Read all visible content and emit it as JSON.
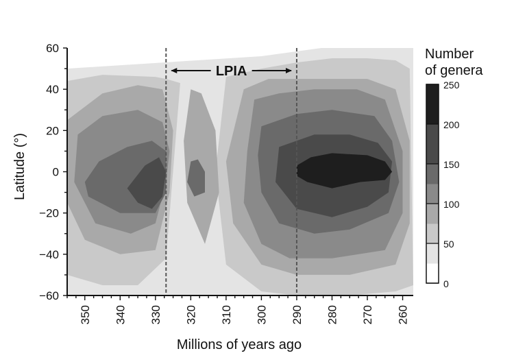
{
  "chart_data": {
    "type": "heatmap",
    "title": "",
    "xlabel": "Millions of years ago",
    "ylabel": "Latitude (°)",
    "xlim": [
      355,
      257
    ],
    "ylim": [
      -60,
      60
    ],
    "x_ticks": [
      350,
      340,
      330,
      320,
      310,
      300,
      290,
      280,
      270,
      260
    ],
    "x_tick_labels": [
      "350",
      "340",
      "330",
      "320",
      "310",
      "300",
      "290",
      "280",
      "270",
      "260"
    ],
    "y_ticks": [
      60,
      40,
      20,
      0,
      -20,
      -40,
      -60
    ],
    "y_tick_labels": [
      "60",
      "40",
      "20",
      "0",
      "−20",
      "−40",
      "−60"
    ],
    "colorbar": {
      "title_lines": [
        "Number",
        "of genera"
      ],
      "levels": [
        0,
        50,
        100,
        150,
        200,
        250
      ],
      "level_labels": [
        "0",
        "50",
        "100",
        "150",
        "200",
        "250"
      ],
      "colors": [
        "#ffffff",
        "#e4e4e4",
        "#c9c9c9",
        "#a9a9a9",
        "#8a8a8a",
        "#6a6a6a",
        "#4a4a4a",
        "#1e1e1e"
      ]
    },
    "annotation": {
      "label": "LPIA",
      "x_start": 327,
      "x_end": 290,
      "line_style": "dashed"
    },
    "contours": [
      {
        "level": 1,
        "polygons": [
          [
            [
              355,
              50
            ],
            [
              300,
              56
            ],
            [
              283,
              60
            ],
            [
              263,
              60
            ],
            [
              257,
              60
            ],
            [
              257,
              -60
            ],
            [
              355,
              -60
            ]
          ]
        ]
      },
      {
        "level": 2,
        "polygons": [
          [
            [
              355,
              44
            ],
            [
              345,
              47
            ],
            [
              330,
              46
            ],
            [
              327,
              45
            ],
            [
              323,
              43
            ],
            [
              327,
              -42
            ],
            [
              335,
              -55
            ],
            [
              345,
              -55
            ],
            [
              355,
              -50
            ]
          ],
          [
            [
              310,
              46
            ],
            [
              300,
              50
            ],
            [
              290,
              53
            ],
            [
              280,
              55
            ],
            [
              270,
              55
            ],
            [
              262,
              54
            ],
            [
              258,
              50
            ],
            [
              257,
              -55
            ],
            [
              262,
              -58
            ],
            [
              275,
              -60
            ],
            [
              290,
              -60
            ],
            [
              300,
              -58
            ],
            [
              310,
              -45
            ],
            [
              313,
              0
            ]
          ]
        ]
      },
      {
        "level": 3,
        "polygons": [
          [
            [
              355,
              25
            ],
            [
              345,
              38
            ],
            [
              335,
              42
            ],
            [
              328,
              40
            ],
            [
              325,
              20
            ],
            [
              326,
              -10
            ],
            [
              330,
              -38
            ],
            [
              340,
              -40
            ],
            [
              350,
              -33
            ],
            [
              355,
              -15
            ]
          ],
          [
            [
              320,
              40
            ],
            [
              322,
              15
            ],
            [
              321,
              -15
            ],
            [
              316,
              -35
            ],
            [
              312,
              -10
            ],
            [
              313,
              20
            ],
            [
              317,
              38
            ]
          ],
          [
            [
              305,
              40
            ],
            [
              298,
              45
            ],
            [
              290,
              45
            ],
            [
              280,
              45
            ],
            [
              270,
              45
            ],
            [
              262,
              40
            ],
            [
              258,
              15
            ],
            [
              258,
              -25
            ],
            [
              262,
              -45
            ],
            [
              275,
              -50
            ],
            [
              290,
              -50
            ],
            [
              300,
              -45
            ],
            [
              308,
              -25
            ],
            [
              310,
              5
            ]
          ]
        ]
      },
      {
        "level": 4,
        "polygons": [
          [
            [
              352,
              18
            ],
            [
              345,
              27
            ],
            [
              335,
              30
            ],
            [
              328,
              24
            ],
            [
              326,
              10
            ],
            [
              327,
              -5
            ],
            [
              330,
              -25
            ],
            [
              337,
              -30
            ],
            [
              347,
              -25
            ],
            [
              353,
              -5
            ]
          ],
          [
            [
              302,
              35
            ],
            [
              295,
              38
            ],
            [
              285,
              40
            ],
            [
              273,
              40
            ],
            [
              265,
              35
            ],
            [
              260,
              10
            ],
            [
              260,
              -20
            ],
            [
              265,
              -38
            ],
            [
              280,
              -42
            ],
            [
              292,
              -42
            ],
            [
              300,
              -35
            ],
            [
              305,
              -15
            ],
            [
              304,
              10
            ]
          ]
        ]
      },
      {
        "level": 5,
        "polygons": [
          [
            [
              346,
              5
            ],
            [
              338,
              12
            ],
            [
              331,
              15
            ],
            [
              327,
              10
            ],
            [
              327,
              -10
            ],
            [
              330,
              -20
            ],
            [
              340,
              -20
            ],
            [
              349,
              -12
            ],
            [
              350,
              -5
            ]
          ],
          [
            [
              320,
              5
            ],
            [
              321,
              -5
            ],
            [
              319,
              -12
            ],
            [
              316,
              -10
            ],
            [
              316,
              0
            ],
            [
              318,
              6
            ]
          ],
          [
            [
              300,
              22
            ],
            [
              290,
              28
            ],
            [
              280,
              30
            ],
            [
              268,
              27
            ],
            [
              263,
              15
            ],
            [
              261,
              -5
            ],
            [
              264,
              -20
            ],
            [
              275,
              -28
            ],
            [
              285,
              -30
            ],
            [
              295,
              -25
            ],
            [
              300,
              -10
            ],
            [
              301,
              8
            ]
          ]
        ]
      },
      {
        "level": 6,
        "polygons": [
          [
            [
              338,
              -8
            ],
            [
              333,
              3
            ],
            [
              329,
              7
            ],
            [
              327,
              0
            ],
            [
              328,
              -12
            ],
            [
              331,
              -18
            ],
            [
              335,
              -15
            ]
          ],
          [
            [
              295,
              12
            ],
            [
              285,
              18
            ],
            [
              275,
              18
            ],
            [
              267,
              14
            ],
            [
              263,
              5
            ],
            [
              264,
              -10
            ],
            [
              270,
              -17
            ],
            [
              280,
              -22
            ],
            [
              290,
              -18
            ],
            [
              296,
              -5
            ]
          ]
        ]
      },
      {
        "level": 7,
        "polygons": [
          [
            [
              290,
              3
            ],
            [
              286,
              7
            ],
            [
              280,
              9
            ],
            [
              270,
              8
            ],
            [
              265,
              5
            ],
            [
              263,
              0
            ],
            [
              265,
              -4
            ],
            [
              272,
              -5
            ],
            [
              280,
              -8
            ],
            [
              287,
              -5
            ],
            [
              290,
              -2
            ]
          ]
        ]
      }
    ]
  }
}
